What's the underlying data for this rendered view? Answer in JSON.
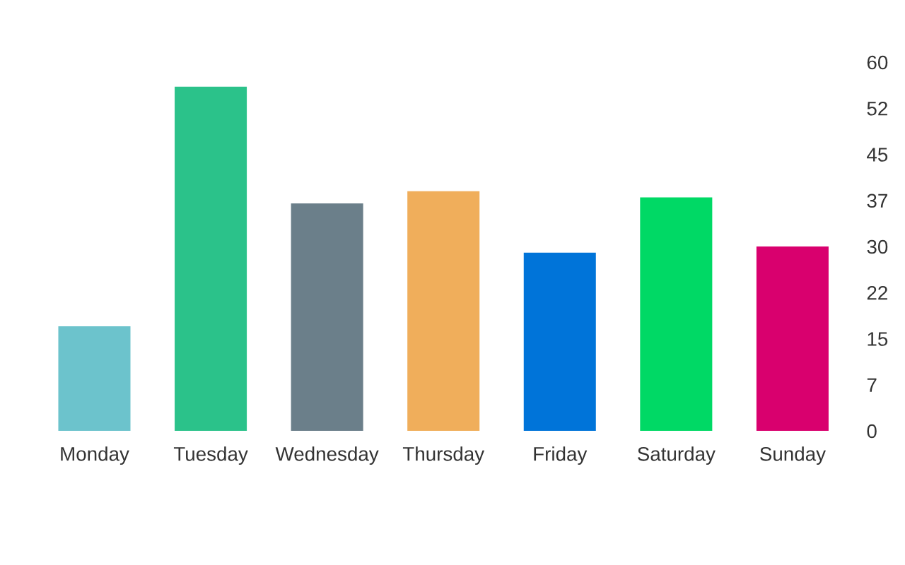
{
  "chart_data": {
    "type": "bar",
    "categories": [
      "Monday",
      "Tuesday",
      "Wednesday",
      "Thursday",
      "Friday",
      "Saturday",
      "Sunday"
    ],
    "values": [
      17,
      56,
      37,
      39,
      29,
      38,
      30
    ],
    "colors": [
      "#6cc3cc",
      "#2bc28a",
      "#6b7f8a",
      "#f0ae5b",
      "#0074d9",
      "#00d965",
      "#d9006e"
    ],
    "ylim": [
      0,
      60
    ],
    "yticks": [
      0,
      {
        "value": 7.5,
        "label": "7"
      },
      15,
      {
        "value": 22.5,
        "label": "22"
      },
      30,
      {
        "value": 37.5,
        "label": "37"
      },
      45,
      {
        "value": 52.5,
        "label": "52"
      },
      60
    ],
    "grid": false,
    "legend": false
  }
}
